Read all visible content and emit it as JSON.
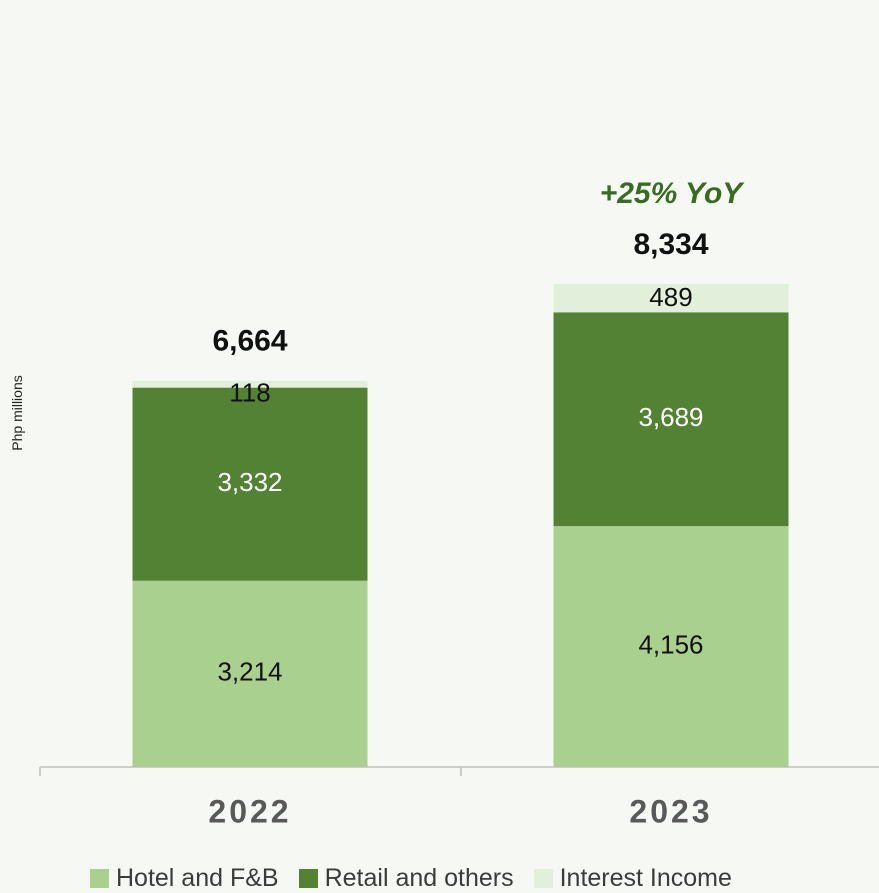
{
  "chart_data": {
    "type": "bar",
    "stacked": true,
    "categories": [
      "2022",
      "2023"
    ],
    "series": [
      {
        "name": "Hotel and F&B",
        "values": [
          3214,
          4156
        ],
        "color": "#a9d08e"
      },
      {
        "name": "Retail and others",
        "values": [
          3332,
          3689
        ],
        "color": "#548235"
      },
      {
        "name": "Interest Income",
        "values": [
          118,
          489
        ],
        "color": "#e2efda"
      }
    ],
    "value_labels": [
      [
        "3,214",
        "3,332",
        "118"
      ],
      [
        "4,156",
        "3,689",
        "489"
      ]
    ],
    "totals": [
      6664,
      8334
    ],
    "total_labels": [
      "6,664",
      "8,334"
    ],
    "annotation": "+25% YoY",
    "ylabel": "Php millions",
    "xlabel": "",
    "title": "",
    "ylim": [
      0,
      8334
    ],
    "grid": false,
    "legend_position": "bottom"
  }
}
